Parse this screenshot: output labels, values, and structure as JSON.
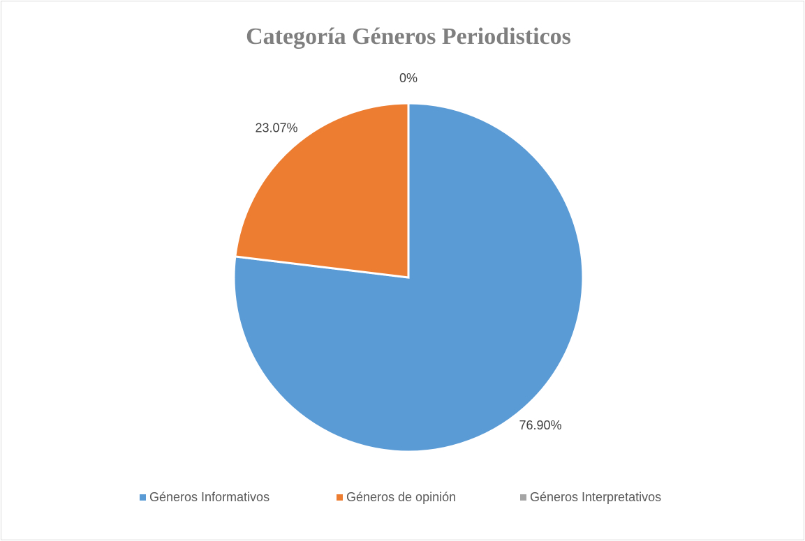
{
  "chart_data": {
    "type": "pie",
    "title": "Categoría Géneros Periodisticos",
    "categories": [
      "Géneros Informativos",
      "Géneros de opinión",
      "Géneros Interpretativos"
    ],
    "values": [
      76.9,
      23.07,
      0
    ],
    "value_labels": [
      "76.90%",
      "23.07%",
      "0%"
    ],
    "colors": [
      "#5b9bd5",
      "#ed7d31",
      "#a5a5a5"
    ],
    "legend": "bottom"
  }
}
